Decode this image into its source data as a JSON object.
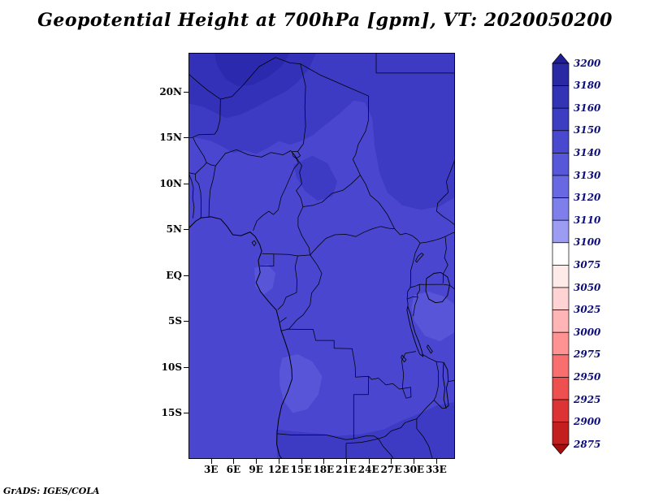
{
  "credit": "GrADS: IGES/COLA",
  "chart_data": {
    "type": "heatmap",
    "title": "Geopotential Height at 700hPa [gpm], VT: 2020050200",
    "variable": "Geopotential Height",
    "level": "700hPa",
    "units": "gpm",
    "valid_time": "2020050200",
    "geo_domain": {
      "lon_range": [
        0,
        35.5
      ],
      "lat_range": [
        -20,
        24.2
      ]
    },
    "x_ticks": [
      {
        "label": "3E",
        "lon": 3
      },
      {
        "label": "6E",
        "lon": 6
      },
      {
        "label": "9E",
        "lon": 9
      },
      {
        "label": "12E",
        "lon": 12
      },
      {
        "label": "15E",
        "lon": 15
      },
      {
        "label": "18E",
        "lon": 18
      },
      {
        "label": "21E",
        "lon": 21
      },
      {
        "label": "24E",
        "lon": 24
      },
      {
        "label": "27E",
        "lon": 27
      },
      {
        "label": "30E",
        "lon": 30
      },
      {
        "label": "33E",
        "lon": 33
      }
    ],
    "y_ticks": [
      {
        "label": "20N",
        "lat": 20
      },
      {
        "label": "15N",
        "lat": 15
      },
      {
        "label": "10N",
        "lat": 10
      },
      {
        "label": "5N",
        "lat": 5
      },
      {
        "label": "EQ",
        "lat": 0
      },
      {
        "label": "5S",
        "lat": -5
      },
      {
        "label": "10S",
        "lat": -10
      },
      {
        "label": "15S",
        "lat": -15
      }
    ],
    "colorbar": {
      "orientation": "vertical",
      "extend_arrows": true,
      "levels": [
        3200,
        3180,
        3160,
        3150,
        3140,
        3130,
        3120,
        3110,
        3100,
        3075,
        3050,
        3025,
        3000,
        2975,
        2950,
        2925,
        2900,
        2875
      ],
      "colors": [
        "#1f1f93",
        "#2929a4",
        "#3333b5",
        "#3d3dc2",
        "#4949cf",
        "#5757da",
        "#6868e3",
        "#7f7fec",
        "#9c9cf3",
        "#ffffff",
        "#ffeaea",
        "#ffd3d3",
        "#ffb5b5",
        "#ff9292",
        "#f96e6e",
        "#ee4f4f",
        "#dc3434",
        "#c31f1f",
        "#a40e0e"
      ],
      "label_color": "#0d0d78"
    },
    "field_value_range_gpm": [
      3130,
      3180
    ],
    "map_shading": {
      "base": "#4a46cf",
      "mid": "#3d3ac3",
      "dark": "#3331b7",
      "darker": "#2b29ad",
      "light": "#5955d9"
    },
    "border_color": "#000000"
  }
}
